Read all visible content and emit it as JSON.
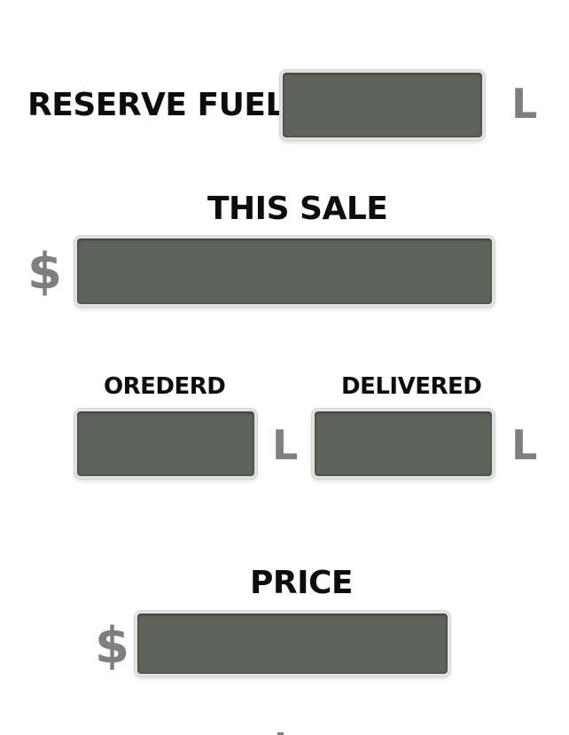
{
  "reserve_fuel": {
    "label": "RESERVE FUEL",
    "value": "",
    "unit": "L"
  },
  "this_sale": {
    "label": "THIS SALE",
    "value": "",
    "currency": "$"
  },
  "ordered": {
    "label": "OREDERD",
    "value": "",
    "unit": "L"
  },
  "delivered": {
    "label": "DELIVERED",
    "value": "",
    "unit": "L"
  },
  "price": {
    "label": "PRICE",
    "value": "",
    "currency": "$"
  },
  "colors": {
    "display_background": "#5f645b",
    "display_bezel": "#e2e3e0",
    "label_text": "#0d0d0d",
    "unit_text": "#7f7f7f"
  }
}
